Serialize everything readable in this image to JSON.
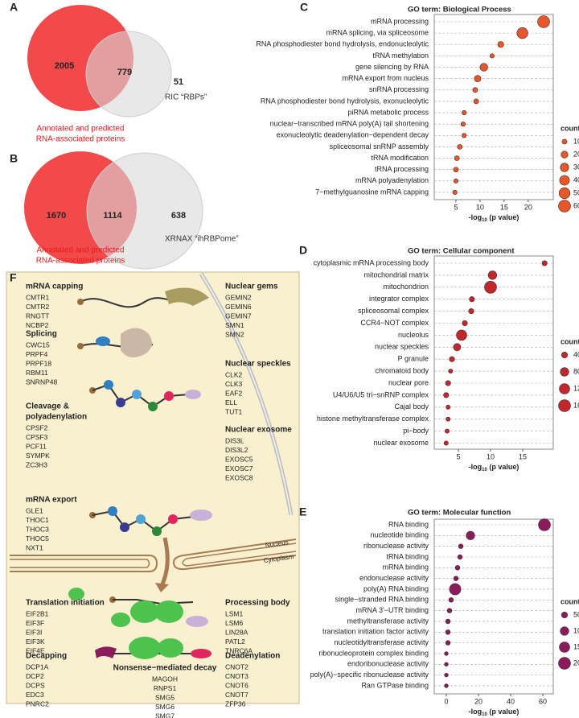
{
  "venns": [
    {
      "letter": "A",
      "counts": [
        2005,
        779,
        51
      ],
      "set_a": [
        "Annotated and predicted",
        "RNA-associated proteins"
      ],
      "set_b": "RIC “RBPs”"
    },
    {
      "letter": "B",
      "counts": [
        1670,
        1114,
        638
      ],
      "set_a": [
        "Annotated and predicted",
        "RNA-associated proteins"
      ],
      "set_b": "XRNAX “ihRBPome”"
    }
  ],
  "chart_data": [
    {
      "type": "dot",
      "letter": "C",
      "title": "GO term: Biological Process",
      "categories": [
        "mRNA processing",
        "mRNA splicing, via spliceosome",
        "RNA phosphodiester bond hydrolysis, endonucleolytic",
        "tRNA methylation",
        "gene silencing by RNA",
        "mRNA export from nucleus",
        "snRNA processing",
        "RNA phosphodiester bond hydrolysis, exonucleolytic",
        "piRNA metabolic process",
        "nuclear−transcribed mRNA poly(A) tail shortening",
        "exonucleolytic deadenylation−dependent decay",
        "spliceosomal snRNP assembly",
        "tRNA modification",
        "tRNA processing",
        "mRNA polyadenylation",
        "7−methylguanosine mRNA capping"
      ],
      "values": [
        23.2,
        18.8,
        14.3,
        12.5,
        10.8,
        9.5,
        9,
        9.2,
        6.7,
        6.5,
        6.7,
        5.8,
        5.2,
        5,
        5,
        4.8
      ],
      "sizes": [
        60,
        50,
        15,
        8,
        25,
        18,
        10,
        10,
        8,
        8,
        8,
        10,
        10,
        10,
        8,
        8
      ],
      "color": "#e8572b",
      "xlim": [
        0.5,
        25.2
      ],
      "xticks": [
        5,
        10,
        15,
        20
      ],
      "grid": true,
      "xlabel": "-log",
      "xlabel_sub": "10",
      "xlabel_end": " (p value)",
      "size_title": "count",
      "size_ticks": [
        10,
        20,
        30,
        40,
        50,
        60
      ]
    },
    {
      "type": "dot",
      "letter": "D",
      "title": "GO term: Cellular component",
      "categories": [
        "cytoplasmic mRNA processing body",
        "mitochondrial matrix",
        "mitochondrion",
        "integrator complex",
        "spliceosomal complex",
        "CCR4−NOT complex",
        "nucleolus",
        "nuclear speckles",
        "P granule",
        "chromatoid body",
        "nuclear pore",
        "U4/U6/U5 tri−snRNP complex",
        "Cajal body",
        "histone methyltransferase complex",
        "pi−body",
        "nuclear exosome"
      ],
      "values": [
        18.4,
        10.3,
        10,
        7.1,
        7,
        6,
        5.5,
        4.8,
        4,
        3.8,
        3.4,
        3.1,
        3.4,
        3.4,
        3.25,
        3.1
      ],
      "sizes": [
        30,
        80,
        160,
        30,
        30,
        30,
        120,
        60,
        30,
        20,
        30,
        30,
        20,
        20,
        20,
        20
      ],
      "color": "#c1272d",
      "xlim": [
        1.25,
        19.75
      ],
      "xticks": [
        5,
        10,
        15
      ],
      "grid": true,
      "xlabel": "-log",
      "xlabel_sub": "10",
      "xlabel_end": " (p value)",
      "size_title": "count",
      "size_ticks": [
        40,
        80,
        120,
        160
      ]
    },
    {
      "type": "dot",
      "letter": "E",
      "title": "GO term: Molecular function",
      "categories": [
        "RNA binding",
        "nucleotide binding",
        "ribonuclease activity",
        "tRNA binding",
        "mRNA binding",
        "endonuclease activity",
        "poly(A) RNA binding",
        "single−stranded RNA binding",
        "mRNA 3'−UTR binding",
        "methyltransferase activity",
        "translation initiation factor activity",
        "nucleotidyltransferase activity",
        "ribonucleoprotein complex binding",
        "endoribonuclease activity",
        "poly(A)−specific ribonuclease activity",
        "Ran GTPase binding"
      ],
      "values": [
        61,
        15,
        9,
        8.5,
        7,
        6,
        5.5,
        3,
        2,
        1,
        1,
        1,
        0,
        0,
        0,
        0
      ],
      "sizes": [
        200,
        100,
        30,
        30,
        30,
        30,
        180,
        30,
        30,
        30,
        30,
        30,
        20,
        20,
        20,
        20
      ],
      "color": "#8c1b5c",
      "xlim": [
        -7.5,
        66.5
      ],
      "xticks": [
        0,
        20,
        40,
        60
      ],
      "grid": true,
      "xlabel": "-log",
      "xlabel_sub": "10",
      "xlabel_end": " (p value)",
      "size_title": "count",
      "size_ticks": [
        50,
        100,
        150,
        200
      ]
    }
  ],
  "diagram": {
    "letter": "F",
    "compartments": [
      "Nucleus",
      "Cytoplasm"
    ],
    "groups": [
      {
        "title": [
          "mRNA capping"
        ],
        "items": [
          "CMTR1",
          "CMTR2",
          "RNGTT",
          "NCBP2"
        ]
      },
      {
        "title": [
          "Splicing"
        ],
        "items": [
          "CWC15",
          "PRPF4",
          "PRPF18",
          "RBM11",
          "SNRNP48"
        ]
      },
      {
        "title": [
          "Cleavage &",
          "polyadenylation"
        ],
        "items": [
          "CPSF2",
          "CPSF3",
          "PCF11",
          "SYMPK",
          "ZC3H3"
        ]
      },
      {
        "title": [
          "mRNA export"
        ],
        "items": [
          "GLE1",
          "THOC1",
          "THOC3",
          "THOC5",
          "NXT1"
        ]
      },
      {
        "title": [
          "Translation initiation"
        ],
        "items": [
          "EIF2B1",
          "EIF3F",
          "EIF3I",
          "EIF3K",
          "EIF4E"
        ]
      },
      {
        "title": [
          "Decapping"
        ],
        "items": [
          "DCP1A",
          "DCP2",
          "DCPS",
          "EDC3",
          "PNRC2"
        ]
      },
      {
        "title": [
          "Nonsense−mediated decay"
        ],
        "items": [
          "MAGOH",
          "RNPS1",
          "SMG5",
          "SMG6",
          "SMG7"
        ]
      },
      {
        "title": [
          "Nuclear gems"
        ],
        "items": [
          "GEMIN2",
          "GEMIN6",
          "GEMIN7",
          "SMN1",
          "SMN2"
        ]
      },
      {
        "title": [
          "Nuclear speckles"
        ],
        "items": [
          "CLK2",
          "CLK3",
          "EAF2",
          "ELL",
          "TUT1"
        ]
      },
      {
        "title": [
          "Nuclear exosome"
        ],
        "items": [
          "DIS3L",
          "DIS3L2",
          "EXOSC5",
          "EXOSC7",
          "EXOSC8"
        ]
      },
      {
        "title": [
          "Processing body"
        ],
        "items": [
          "LSM1",
          "LSM6",
          "LIN28A",
          "PATL2",
          "TNRC6A"
        ]
      },
      {
        "title": [
          "Deadenylation"
        ],
        "items": [
          "CNOT2",
          "CNOT3",
          "CNOT6",
          "CNOT7",
          "ZFP36"
        ]
      }
    ]
  }
}
